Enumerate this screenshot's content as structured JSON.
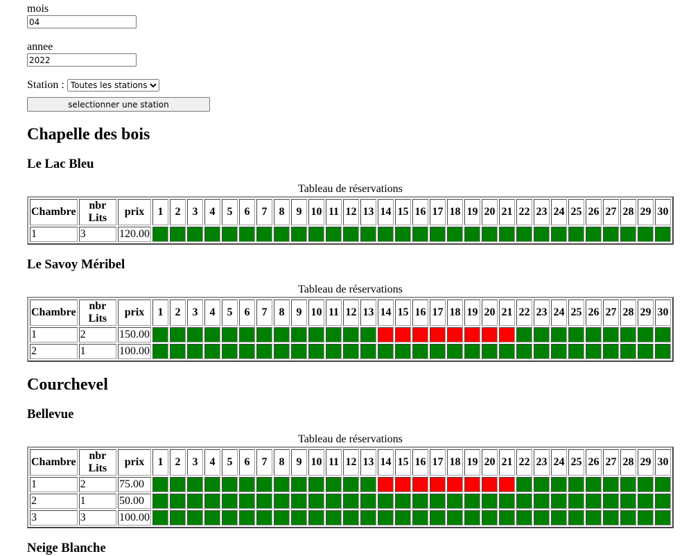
{
  "form": {
    "mois_label": "mois",
    "mois_value": "04",
    "annee_label": "annee",
    "annee_value": "2022",
    "station_label": "Station :",
    "station_option": "Toutes les stations",
    "button": "selectionner une station"
  },
  "table_header": {
    "columns": [
      "Chambre",
      "nbr Lits",
      "prix"
    ],
    "days": [
      1,
      2,
      3,
      4,
      5,
      6,
      7,
      8,
      9,
      10,
      11,
      12,
      13,
      14,
      15,
      16,
      17,
      18,
      19,
      20,
      21,
      22,
      23,
      24,
      25,
      26,
      27,
      28,
      29,
      30
    ]
  },
  "free_color": "#008000",
  "booked_color": "#ff0000",
  "stations": [
    {
      "name": "Chapelle des bois",
      "hotels": [
        {
          "name": "Le Lac Bleu",
          "caption": "Tableau de réservations",
          "rooms": [
            {
              "chambre": 1,
              "lits": 3,
              "prix": "120.00",
              "booked": []
            }
          ]
        },
        {
          "name": "Le Savoy Méribel",
          "caption": "Tableau de réservations",
          "rooms": [
            {
              "chambre": 1,
              "lits": 2,
              "prix": "150.00",
              "booked": [
                14,
                15,
                16,
                17,
                18,
                19,
                20,
                21
              ]
            },
            {
              "chambre": 2,
              "lits": 1,
              "prix": "100.00",
              "booked": []
            }
          ]
        }
      ]
    },
    {
      "name": "Courchevel",
      "hotels": [
        {
          "name": "Bellevue",
          "caption": "Tableau de réservations",
          "rooms": [
            {
              "chambre": 1,
              "lits": 2,
              "prix": "75.00",
              "booked": [
                14,
                15,
                16,
                17,
                18,
                19,
                20,
                21
              ]
            },
            {
              "chambre": 2,
              "lits": 1,
              "prix": "50.00",
              "booked": []
            },
            {
              "chambre": 3,
              "lits": 3,
              "prix": "100.00",
              "booked": []
            }
          ]
        },
        {
          "name": "Neige Blanche"
        }
      ]
    }
  ]
}
